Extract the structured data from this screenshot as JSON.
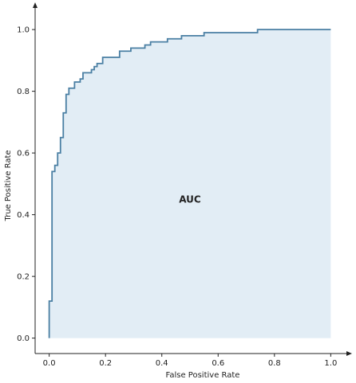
{
  "chart_data": {
    "type": "line",
    "title": "",
    "xlabel": "False Positive Rate",
    "ylabel": "True Positive Rate",
    "xlim": [
      -0.05,
      1.05
    ],
    "ylim": [
      -0.05,
      1.07
    ],
    "xticks": [
      0.0,
      0.2,
      0.4,
      0.6,
      0.8,
      1.0
    ],
    "yticks": [
      0.0,
      0.2,
      0.4,
      0.6,
      0.8,
      1.0
    ],
    "xtick_labels": [
      "0.0",
      "0.2",
      "0.4",
      "0.6",
      "0.8",
      "1.0"
    ],
    "ytick_labels": [
      "0.0",
      "0.2",
      "0.4",
      "0.6",
      "0.8",
      "1.0"
    ],
    "annotation": "AUC",
    "grid": false,
    "colors": {
      "line": "#4a7fa3",
      "fill": "#e2edf5",
      "axis": "#222222"
    },
    "series": [
      {
        "fill_under": true,
        "x": [
          0,
          0,
          0.01,
          0.01,
          0.02,
          0.02,
          0.03,
          0.03,
          0.04,
          0.04,
          0.05,
          0.05,
          0.06,
          0.06,
          0.07,
          0.07,
          0.09,
          0.09,
          0.11,
          0.11,
          0.12,
          0.12,
          0.15,
          0.15,
          0.16,
          0.16,
          0.17,
          0.17,
          0.19,
          0.19,
          0.25,
          0.25,
          0.29,
          0.29,
          0.34,
          0.34,
          0.36,
          0.36,
          0.42,
          0.42,
          0.47,
          0.47,
          0.55,
          0.55,
          0.74,
          0.74,
          1.0
        ],
        "y": [
          0,
          0.12,
          0.12,
          0.54,
          0.54,
          0.56,
          0.56,
          0.6,
          0.6,
          0.65,
          0.65,
          0.73,
          0.73,
          0.79,
          0.79,
          0.81,
          0.81,
          0.83,
          0.83,
          0.84,
          0.84,
          0.86,
          0.86,
          0.87,
          0.87,
          0.88,
          0.88,
          0.89,
          0.89,
          0.91,
          0.91,
          0.93,
          0.93,
          0.94,
          0.94,
          0.95,
          0.95,
          0.96,
          0.96,
          0.97,
          0.97,
          0.98,
          0.98,
          0.99,
          0.99,
          1.0,
          1.0
        ]
      }
    ]
  }
}
